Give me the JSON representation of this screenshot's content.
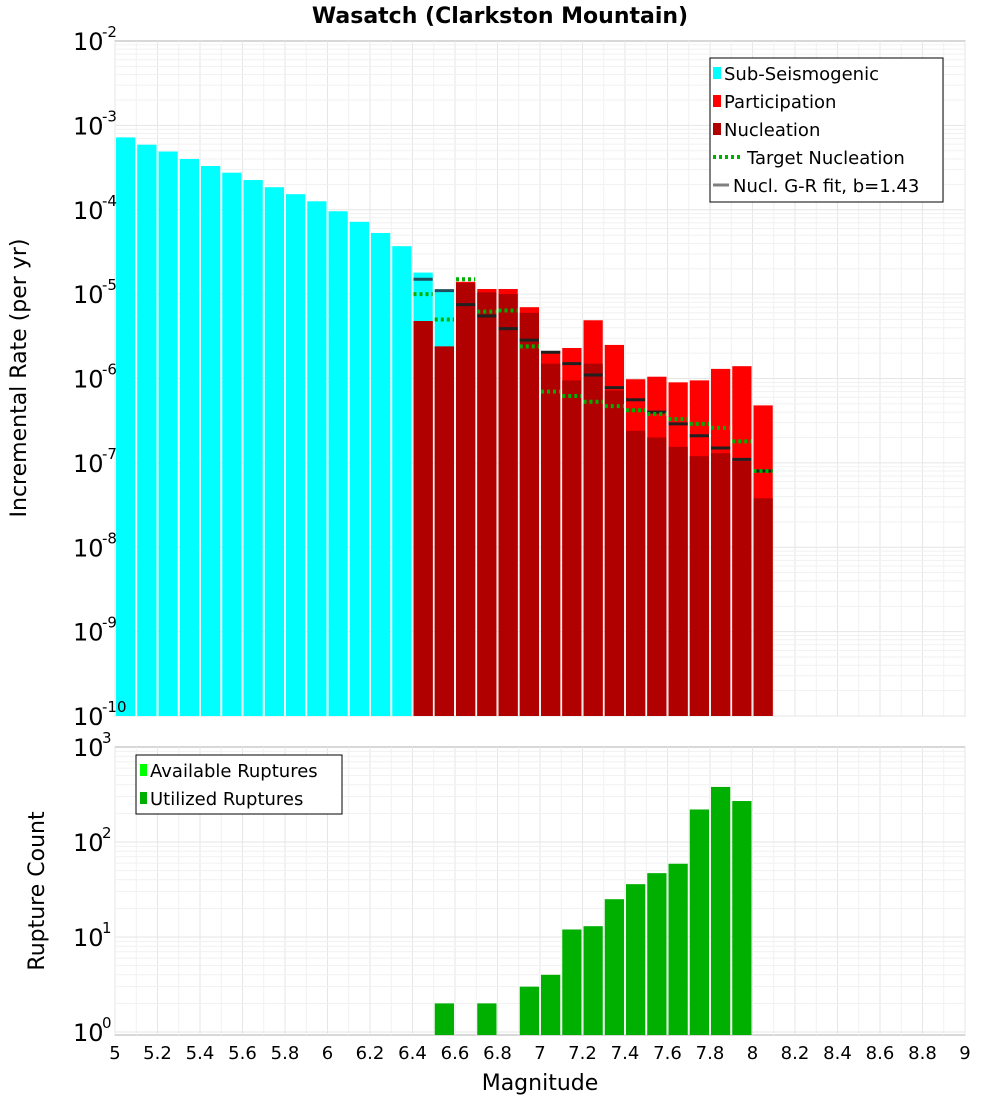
{
  "chart_data": [
    {
      "type": "bar",
      "title": "Wasatch (Clarkston Mountain)",
      "xlabel": "Magnitude",
      "ylabel": "Incremental Rate (per yr)",
      "yscale": "log",
      "ylim_exponents": [
        -10,
        -2
      ],
      "xlim": [
        5,
        9
      ],
      "bin_width": 0.1,
      "legend": {
        "placement": "top-right",
        "entries": [
          {
            "label": "Sub-Seismogenic",
            "color": "#00ffff",
            "style": "bar"
          },
          {
            "label": "Participation",
            "color": "#ff0000",
            "style": "bar"
          },
          {
            "label": "Nucleation",
            "color": "#b00000",
            "style": "bar"
          },
          {
            "label": "Target Nucleation",
            "color": "#00b000",
            "style": "dotted"
          },
          {
            "label": "Nucl. G-R fit, b=1.43",
            "color": "#808080",
            "style": "line"
          }
        ]
      },
      "sub_seismogenic": {
        "x": [
          5.05,
          5.15,
          5.25,
          5.35,
          5.45,
          5.55,
          5.65,
          5.75,
          5.85,
          5.95,
          6.05,
          6.15,
          6.25,
          6.35,
          6.45,
          6.55
        ],
        "values": [
          0.00072,
          0.00059,
          0.00049,
          0.0004,
          0.00033,
          0.000275,
          0.000225,
          0.000185,
          0.000153,
          0.000126,
          9.6e-05,
          7.2e-05,
          5.3e-05,
          3.7e-05,
          1.8e-05,
          1.1e-05
        ]
      },
      "bins_x": [
        6.45,
        6.55,
        6.65,
        6.75,
        6.85,
        6.95,
        7.05,
        7.15,
        7.25,
        7.35,
        7.45,
        7.55,
        7.65,
        7.75,
        7.85,
        7.95,
        8.05
      ],
      "participation": [
        4.8e-06,
        2.4e-06,
        1.4e-05,
        1.15e-05,
        1.15e-05,
        7e-06,
        2.1e-06,
        2.3e-06,
        4.9e-06,
        2.5e-06,
        9.8e-07,
        1.05e-06,
        9e-07,
        9.5e-07,
        1.3e-06,
        1.4e-06,
        4.8e-07
      ],
      "nucleation": [
        4.8e-06,
        2.4e-06,
        1.35e-05,
        1.05e-05,
        1e-05,
        6e-06,
        1.5e-06,
        9.5e-07,
        1.5e-06,
        7.2e-07,
        2.4e-07,
        2e-07,
        1.55e-07,
        1.2e-07,
        1.3e-07,
        1.05e-07,
        3.8e-08
      ],
      "target_nucleation": [
        1e-05,
        5e-06,
        1.5e-05,
        6.2e-06,
        6.4e-06,
        2.4e-06,
        7e-07,
        6.2e-07,
        5.3e-07,
        4.7e-07,
        4.2e-07,
        3.8e-07,
        3.3e-07,
        2.9e-07,
        2.6e-07,
        1.8e-07,
        8e-08
      ],
      "gr_fit": [
        1.5e-05,
        1.1e-05,
        7.5e-06,
        5.5e-06,
        3.9e-06,
        2.85e-06,
        2.05e-06,
        1.5e-06,
        1.1e-06,
        7.8e-07,
        5.6e-07,
        4e-07,
        2.9e-07,
        2.1e-07,
        1.5e-07,
        1.1e-07,
        8e-08
      ]
    },
    {
      "type": "bar",
      "xlabel": "Magnitude",
      "ylabel": "Rupture Count",
      "yscale": "log",
      "ylim_exponents": [
        0,
        3
      ],
      "xlim": [
        5,
        9
      ],
      "bin_width": 0.1,
      "legend": {
        "placement": "top-left",
        "entries": [
          {
            "label": "Available Ruptures",
            "color": "#00ff00",
            "style": "bar"
          },
          {
            "label": "Utilized Ruptures",
            "color": "#00b000",
            "style": "bar"
          }
        ]
      },
      "x": [
        6.55,
        6.75,
        6.95,
        7.05,
        7.15,
        7.25,
        7.35,
        7.45,
        7.55,
        7.65,
        7.75,
        7.85,
        7.95
      ],
      "values": [
        2,
        2,
        3,
        4,
        12,
        13,
        25,
        36,
        47,
        59,
        220,
        380,
        270
      ]
    }
  ],
  "x_ticks": [
    "5",
    "5.2",
    "5.4",
    "5.6",
    "5.8",
    "6",
    "6.2",
    "6.4",
    "6.6",
    "6.8",
    "7",
    "7.2",
    "7.4",
    "7.6",
    "7.8",
    "8",
    "8.2",
    "8.4",
    "8.6",
    "8.8",
    "9"
  ]
}
